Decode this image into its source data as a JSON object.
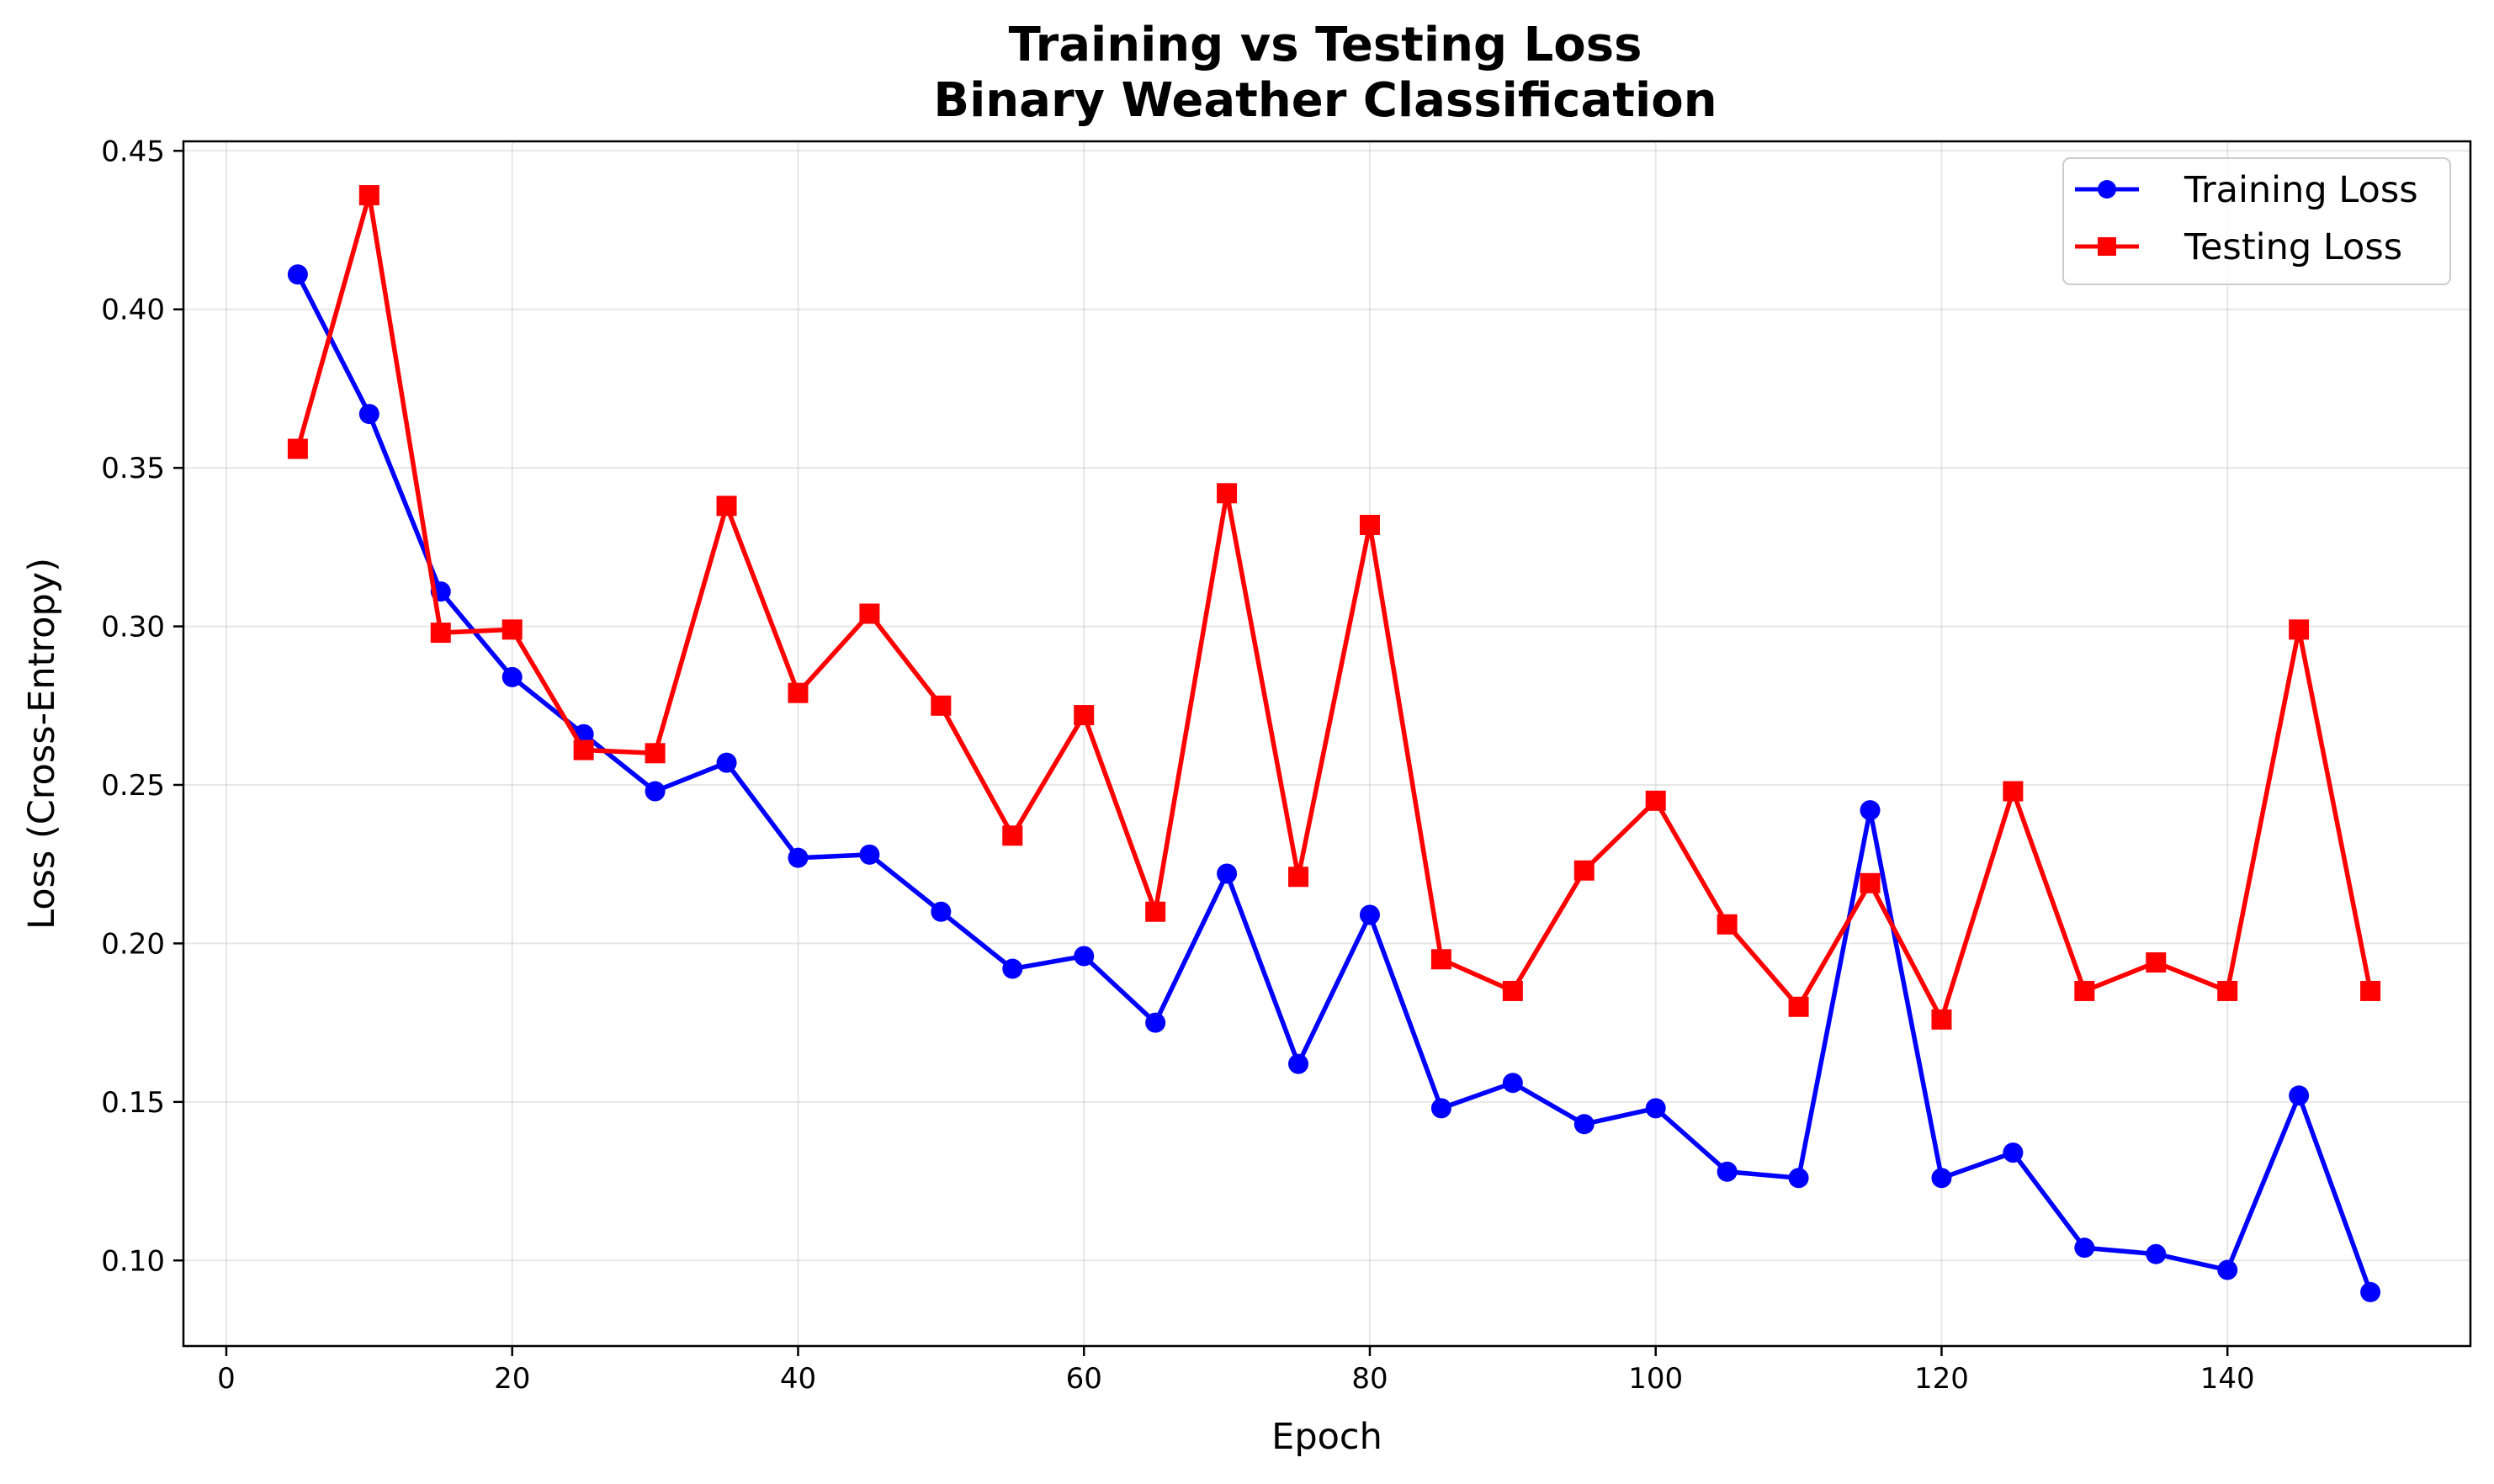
{
  "chart_data": {
    "type": "line",
    "title": "Training vs Testing Loss",
    "subtitle": "Binary Weather Classification",
    "xlabel": "Epoch",
    "ylabel": "Loss (Cross-Entropy)",
    "xlim": [
      -3,
      157
    ],
    "ylim": [
      0.073,
      0.453
    ],
    "xticks": [
      0,
      20,
      40,
      60,
      80,
      100,
      120,
      140
    ],
    "yticks": [
      0.1,
      0.15,
      0.2,
      0.25,
      0.3,
      0.35,
      0.4,
      0.45
    ],
    "grid": true,
    "legend_position": "top-right",
    "x": [
      5,
      10,
      15,
      20,
      25,
      30,
      35,
      40,
      45,
      50,
      55,
      60,
      65,
      70,
      75,
      80,
      85,
      90,
      95,
      100,
      105,
      110,
      115,
      120,
      125,
      130,
      135,
      140,
      145,
      150
    ],
    "series": [
      {
        "name": "Training Loss",
        "color": "#0000ff",
        "marker": "circle",
        "values": [
          0.411,
          0.367,
          0.311,
          0.284,
          0.266,
          0.248,
          0.257,
          0.227,
          0.228,
          0.21,
          0.192,
          0.196,
          0.175,
          0.222,
          0.162,
          0.209,
          0.148,
          0.156,
          0.143,
          0.148,
          0.128,
          0.126,
          0.242,
          0.126,
          0.134,
          0.104,
          0.102,
          0.097,
          0.152,
          0.09
        ]
      },
      {
        "name": "Testing Loss",
        "color": "#ff0000",
        "marker": "square",
        "values": [
          0.356,
          0.436,
          0.298,
          0.299,
          0.261,
          0.26,
          0.338,
          0.279,
          0.304,
          0.275,
          0.234,
          0.272,
          0.21,
          0.342,
          0.221,
          0.332,
          0.195,
          0.185,
          0.223,
          0.245,
          0.206,
          0.18,
          0.219,
          0.176,
          0.248,
          0.185,
          0.194,
          0.185,
          0.299,
          0.185
        ]
      }
    ]
  }
}
